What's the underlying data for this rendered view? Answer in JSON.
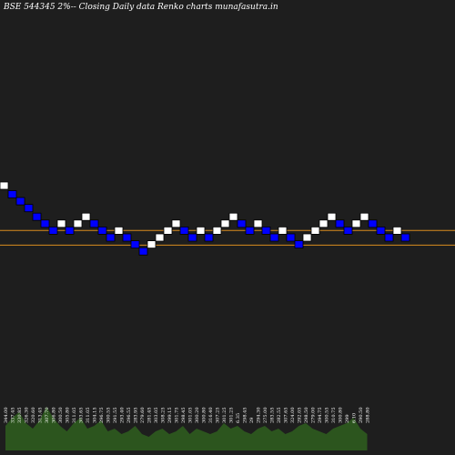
{
  "chart_data": {
    "type": "renko",
    "title": "BSE 544345 2%-- Closing Daily data Renko charts munafasutra.in",
    "background": "#1e1e1e",
    "up_color": "#ffffff",
    "down_color": "#0000ff",
    "box_border": "#000000",
    "reference_line_color": "#d98c1f",
    "reference_lines": [
      298,
      289.5
    ],
    "volume_color": "#2f5f1e",
    "grid": false,
    "bricks": [
      {
        "dir": "up",
        "level": 326
      },
      {
        "dir": "down",
        "level": 321
      },
      {
        "dir": "down",
        "level": 317
      },
      {
        "dir": "down",
        "level": 313
      },
      {
        "dir": "down",
        "level": 308
      },
      {
        "dir": "down",
        "level": 304
      },
      {
        "dir": "down",
        "level": 300
      },
      {
        "dir": "up",
        "level": 304
      },
      {
        "dir": "down",
        "level": 300
      },
      {
        "dir": "up",
        "level": 304
      },
      {
        "dir": "up",
        "level": 308
      },
      {
        "dir": "down",
        "level": 304
      },
      {
        "dir": "down",
        "level": 300
      },
      {
        "dir": "down",
        "level": 296
      },
      {
        "dir": "up",
        "level": 300
      },
      {
        "dir": "down",
        "level": 296
      },
      {
        "dir": "down",
        "level": 292
      },
      {
        "dir": "down",
        "level": 288
      },
      {
        "dir": "up",
        "level": 292
      },
      {
        "dir": "up",
        "level": 296
      },
      {
        "dir": "up",
        "level": 300
      },
      {
        "dir": "up",
        "level": 304
      },
      {
        "dir": "down",
        "level": 300
      },
      {
        "dir": "down",
        "level": 296
      },
      {
        "dir": "up",
        "level": 300
      },
      {
        "dir": "down",
        "level": 296
      },
      {
        "dir": "up",
        "level": 300
      },
      {
        "dir": "up",
        "level": 304
      },
      {
        "dir": "up",
        "level": 308
      },
      {
        "dir": "down",
        "level": 304
      },
      {
        "dir": "down",
        "level": 300
      },
      {
        "dir": "up",
        "level": 304
      },
      {
        "dir": "down",
        "level": 300
      },
      {
        "dir": "down",
        "level": 296
      },
      {
        "dir": "up",
        "level": 300
      },
      {
        "dir": "down",
        "level": 296
      },
      {
        "dir": "down",
        "level": 292
      },
      {
        "dir": "up",
        "level": 296
      },
      {
        "dir": "up",
        "level": 300
      },
      {
        "dir": "up",
        "level": 304
      },
      {
        "dir": "up",
        "level": 308
      },
      {
        "dir": "down",
        "level": 304
      },
      {
        "dir": "down",
        "level": 300
      },
      {
        "dir": "up",
        "level": 304
      },
      {
        "dir": "up",
        "level": 308
      },
      {
        "dir": "down",
        "level": 304
      },
      {
        "dir": "down",
        "level": 300
      },
      {
        "dir": "down",
        "level": 296
      },
      {
        "dir": "up",
        "level": 300
      },
      {
        "dir": "down",
        "level": 296
      }
    ],
    "labels": [
      "344.00",
      "337.45",
      "330.85",
      "326.30",
      "320.60",
      "313.45",
      "307.70",
      "306.80",
      "300.50",
      "305.80",
      "311.05",
      "303.65",
      "311.05",
      "304.15",
      "296.75",
      "300.55",
      "291.55",
      "293.40",
      "296.55",
      "283.95",
      "279.60",
      "281.45",
      "303.05",
      "308.25",
      "299.15",
      "301.75",
      "298.45",
      "301.05",
      "300.20",
      "300.80",
      "316.40",
      "307.25",
      "301.25",
      "301.25",
      "6.35",
      "298.45",
      "29",
      "294.30",
      "275.00",
      "283.55",
      "282.55",
      "307.65",
      "324.00",
      "292.05",
      "298.50",
      "279.00",
      "294.75",
      "300.55",
      "310.75",
      "300.80",
      "299",
      "6.10",
      "290.50",
      "288.80"
    ],
    "volume": [
      0.45,
      0.6,
      0.7,
      0.5,
      0.4,
      0.55,
      0.8,
      0.6,
      0.45,
      0.35,
      0.5,
      0.6,
      0.4,
      0.45,
      0.55,
      0.35,
      0.4,
      0.3,
      0.35,
      0.45,
      0.3,
      0.25,
      0.35,
      0.4,
      0.3,
      0.35,
      0.45,
      0.3,
      0.4,
      0.35,
      0.3,
      0.35,
      0.5,
      0.4,
      0.45,
      0.35,
      0.3,
      0.4,
      0.45,
      0.35,
      0.4,
      0.3,
      0.35,
      0.45,
      0.5,
      0.4,
      0.35,
      0.3,
      0.4,
      0.45,
      0.5,
      0.6,
      0.4,
      0.3
    ]
  }
}
